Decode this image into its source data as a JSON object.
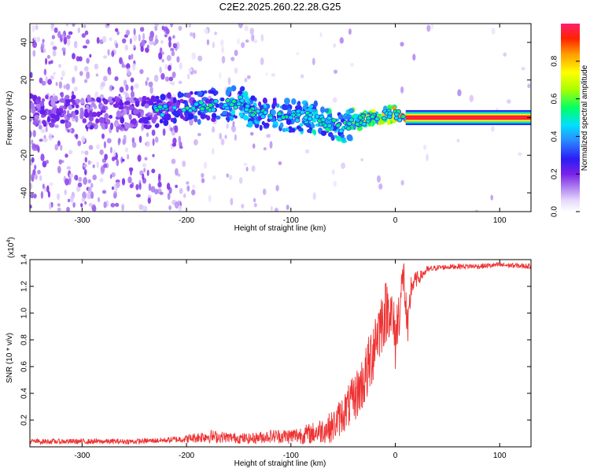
{
  "chart_data": [
    {
      "type": "heatmap",
      "title": "C2E2.2025.260.22.28.G25",
      "xlabel": "Height of straight line (km)",
      "ylabel": "Frequency (Hz)",
      "xlim": [
        -350,
        130
      ],
      "ylim": [
        -50,
        50
      ],
      "xticks": [
        -300,
        -200,
        -100,
        0,
        100
      ],
      "yticks": [
        -40,
        -20,
        0,
        20,
        40
      ],
      "colorbar": {
        "label": "Normalized spectral amplitude",
        "range": [
          0,
          1
        ],
        "ticks": [
          "0.0",
          "0.2",
          "0.4",
          "0.6",
          "0.8"
        ],
        "ticks_values": [
          0,
          0.2,
          0.4,
          0.6,
          0.8
        ]
      },
      "signal_track": {
        "description": "dominant frequency vs height",
        "x": [
          -350,
          -300,
          -250,
          -200,
          -180,
          -160,
          -145,
          -140,
          -120,
          -100,
          -80,
          -60,
          -50,
          -40,
          -30,
          -20,
          -10,
          0,
          10,
          130
        ],
        "y": [
          4,
          3,
          2,
          5,
          6,
          7,
          9,
          3,
          2,
          1,
          0,
          -3,
          -5,
          -3,
          -1,
          0,
          1,
          2,
          0,
          0
        ],
        "amplitude": [
          0.2,
          0.2,
          0.2,
          0.3,
          0.35,
          0.4,
          0.45,
          0.4,
          0.4,
          0.4,
          0.45,
          0.5,
          0.45,
          0.55,
          0.6,
          0.65,
          0.7,
          0.8,
          0.9,
          0.95
        ]
      }
    },
    {
      "type": "line",
      "title": "",
      "xlabel": "Height of straight line (km)",
      "ylabel": "SNR (10 * v/v)",
      "scale_label": "(x10",
      "scale_exponent": "4",
      "scale_close": ")",
      "xlim": [
        -350,
        130
      ],
      "ylim": [
        0,
        1.4
      ],
      "xticks": [
        -300,
        -200,
        -100,
        0,
        100
      ],
      "yticks": [
        0.2,
        0.4,
        0.6,
        0.8,
        1.0,
        1.2,
        1.4
      ],
      "ytick_labels": [
        "0.2",
        "0.4",
        "0.6",
        "0.8",
        "1.0",
        "1.2",
        "1.4"
      ],
      "color": "#ee3333",
      "series": [
        {
          "name": "SNR",
          "x": [
            -350,
            -300,
            -250,
            -220,
            -200,
            -180,
            -160,
            -140,
            -120,
            -100,
            -80,
            -60,
            -50,
            -40,
            -30,
            -25,
            -20,
            -15,
            -10,
            -5,
            0,
            5,
            8,
            12,
            15,
            20,
            25,
            30,
            40,
            60,
            80,
            100,
            130
          ],
          "values": [
            0.04,
            0.04,
            0.04,
            0.05,
            0.06,
            0.08,
            0.07,
            0.06,
            0.08,
            0.08,
            0.1,
            0.15,
            0.25,
            0.35,
            0.5,
            0.6,
            0.8,
            0.9,
            1.0,
            1.05,
            0.8,
            1.1,
            1.3,
            0.8,
            1.2,
            1.25,
            1.28,
            1.32,
            1.34,
            1.35,
            1.35,
            1.36,
            1.35
          ],
          "noise": [
            0.02,
            0.02,
            0.02,
            0.02,
            0.03,
            0.05,
            0.04,
            0.04,
            0.05,
            0.06,
            0.08,
            0.12,
            0.15,
            0.18,
            0.22,
            0.25,
            0.28,
            0.25,
            0.25,
            0.22,
            0.25,
            0.2,
            0.15,
            0.2,
            0.1,
            0.06,
            0.04,
            0.03,
            0.02,
            0.02,
            0.02,
            0.02,
            0.02
          ]
        }
      ]
    }
  ]
}
